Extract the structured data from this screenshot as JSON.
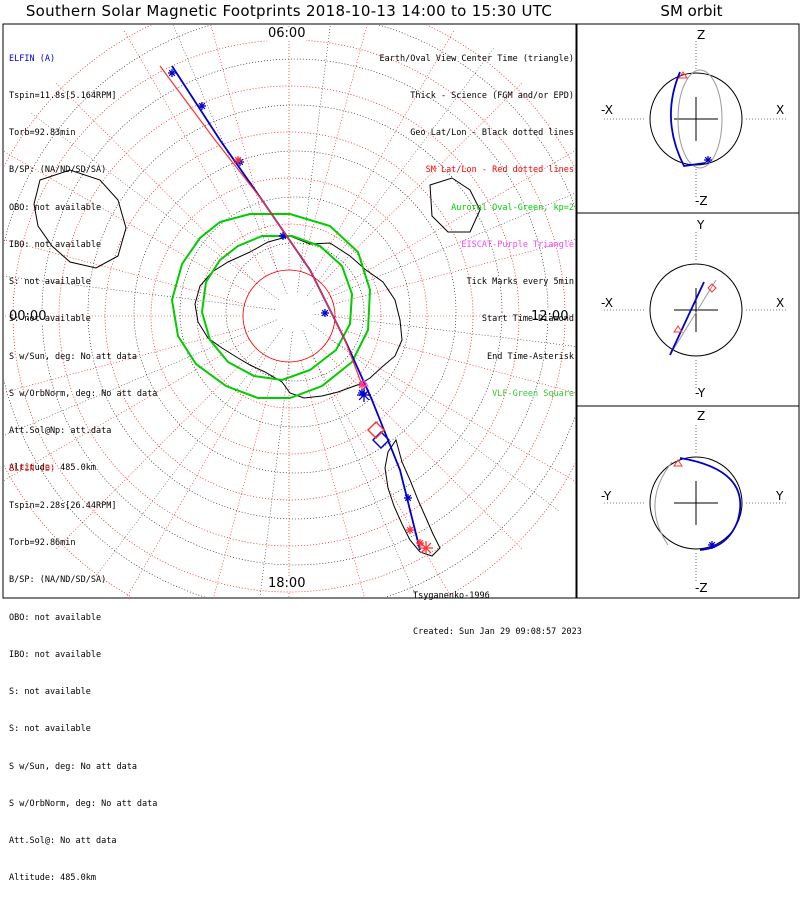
{
  "header": {
    "title": "Southern Solar Magnetic Footprints 2018-10-13 14:00 to 15:30 UTC",
    "sm_orbit_title": "SM orbit"
  },
  "colors": {
    "elfin_a": "#0000cc",
    "elfin_b": "#ff3333",
    "auroral_oval": "#00cc00",
    "eiscat": "#ff44ff",
    "vlf": "#33cc33",
    "sm_grid": "#ff0000",
    "geo_grid": "#000000"
  },
  "elfin_a": {
    "name": "ELFIN (A)",
    "lines": [
      "Tspin=11.8s[5.164RPM]",
      "Torb=92.83min",
      "B/SP: (NA/ND/SD/SA)",
      "OBO: not available",
      "IBO: not available",
      "S: not available",
      "S: not available",
      "S w/Sun, deg: No att data",
      "S w/OrbNorm, deg: No att data",
      "Att.Sol@Np: att.data",
      "Altitude: 485.0km"
    ]
  },
  "elfin_b": {
    "name": "ELFIN (B)",
    "lines": [
      "Tspin=2.28s[26.44RPM]",
      "Torb=92.86min",
      "B/SP: (NA/ND/SD/SA)",
      "OBO: not available",
      "IBO: not available",
      "S: not available",
      "S: not available",
      "S w/Sun, deg: No att data",
      "S w/OrbNorm, deg: No att data",
      "Att.Sol@: No att data",
      "Altitude: 485.0km"
    ]
  },
  "legend": [
    {
      "text": "Earth/Oval View Center Time (triangle)",
      "color": "#000000"
    },
    {
      "text": "Thick - Science (FGM and/or EPD)",
      "color": "#000000"
    },
    {
      "text": "Geo Lat/Lon - Black dotted lines",
      "color": "#000000"
    },
    {
      "text": "SM Lat/Lon - Red dotted lines",
      "color": "#ff0000"
    },
    {
      "text": "Auroral Oval-Green, kp=2",
      "color": "#00cc00"
    },
    {
      "text": "EISCAT-Purple Triangle",
      "color": "#ff44ff"
    },
    {
      "text": "Tick Marks every 5min",
      "color": "#000000"
    },
    {
      "text": "Start Time-Diamond",
      "color": "#000000"
    },
    {
      "text": "End Time-Asterisk",
      "color": "#000000"
    },
    {
      "text": "VLF-Green Square",
      "color": "#33cc33"
    }
  ],
  "footer": {
    "credit": "Tsyganenko-1996",
    "created": "Created: Sun Jan 29 09:08:57 2023"
  },
  "sm_orbit": {
    "panels": [
      {
        "name": "x-z",
        "top": "Z",
        "bottom": "-Z",
        "left": "-X",
        "right": "X"
      },
      {
        "name": "x-y",
        "top": "Y",
        "bottom": "-Y",
        "left": "-X",
        "right": "X"
      },
      {
        "name": "y-z",
        "top": "Z",
        "bottom": "-Z",
        "left": "-Y",
        "right": "Y"
      }
    ]
  },
  "chart_data": {
    "type": "scatter",
    "title": "Southern Solar Magnetic Footprints 2018-10-13 14:00 to 15:30 UTC",
    "projection": "south polar, magnetic local time",
    "mlt_tick_labels": [
      "06:00",
      "12:00",
      "18:00",
      "00:00"
    ],
    "tick_interval_min": 5,
    "series": [
      {
        "name": "ELFIN (A)",
        "color": "#0000cc",
        "track": [
          [
            172,
            66
          ],
          [
            220,
            140
          ],
          [
            262,
            200
          ],
          [
            310,
            270
          ],
          [
            345,
            340
          ],
          [
            372,
            400
          ],
          [
            400,
            470
          ],
          [
            420,
            550
          ]
        ],
        "ticks": [
          [
            172,
            73
          ],
          [
            202,
            106
          ],
          [
            240,
            162
          ],
          [
            283,
            236
          ],
          [
            325,
            313
          ],
          [
            362,
            393
          ],
          [
            408,
            498
          ]
        ],
        "start": [
          381,
          440
        ],
        "end": [
          364,
          395
        ]
      },
      {
        "name": "ELFIN (B)",
        "color": "#ff3333",
        "track": [
          [
            160,
            66
          ],
          [
            215,
            140
          ],
          [
            262,
            200
          ],
          [
            310,
            270
          ],
          [
            345,
            340
          ],
          [
            362,
            385
          ]
        ],
        "ticks": [
          [
            238,
            160
          ],
          [
            362,
            385
          ],
          [
            410,
            530
          ],
          [
            420,
            543
          ]
        ],
        "start": [
          376,
          430
        ],
        "end": [
          426,
          548
        ]
      }
    ],
    "auroral_oval_kp": 2
  }
}
